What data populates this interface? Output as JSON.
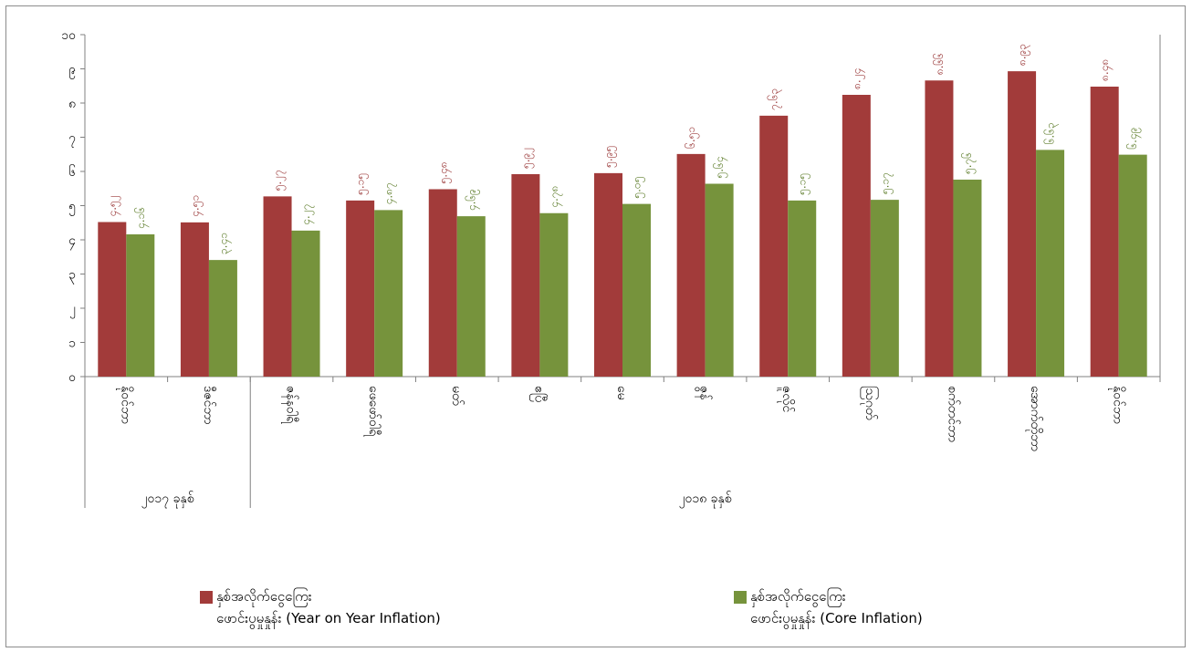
{
  "chart_data": {
    "type": "bar",
    "ylim": [
      0,
      10
    ],
    "yticks": [
      "၀",
      "၁",
      "၂",
      "၃",
      "၄",
      "၅",
      "၆",
      "၇",
      "၈",
      "၉",
      "၁၀"
    ],
    "categories": [
      "နိုဝင်ဘာ",
      "ဒီဇင်ဘာ",
      "ဇန်နဝါရီ",
      "ဖေဖော်ဝါရီ",
      "မတ်",
      "ဧပြီ",
      "မေ",
      "ဇွန်",
      "ဇူလိုင်",
      "ဩဂုတ်",
      "စက်တင်ဘာ",
      "အောက်တိုဘာ",
      "နိုဝင်ဘာ"
    ],
    "groups": [
      {
        "label": "၂၀၁၇ ခုနှစ်",
        "count": 2
      },
      {
        "label": "၂၀၁၈ ခုနှစ်",
        "count": 11
      }
    ],
    "series": [
      {
        "name": "နှစ်အလိုက်ငွေကြေးဖောင်းပွမှုနှုန်း (Year on Year Inflation)",
        "color": "#a23b3a",
        "values": [
          4.52,
          4.51,
          5.27,
          5.15,
          5.48,
          5.92,
          5.95,
          6.51,
          7.63,
          8.24,
          8.66,
          8.93,
          8.48
        ],
        "labels": [
          "၄.၅၂",
          "၄.၅၁",
          "၅.၂၇",
          "၅.၁၅",
          "၅.၄၈",
          "၅.၉၂",
          "၅.၉၅",
          "၆.၅၁",
          "၇.၆၃",
          "၈.၂၄",
          "၈.၆၆",
          "၈.၉၃",
          "၈.၄၈"
        ]
      },
      {
        "name": "နှစ်အလိုက်ငွေကြေးဖောင်းပွမှုနှုန်း (Core Inflation)",
        "color": "#76933c",
        "values": [
          4.16,
          3.41,
          4.27,
          4.87,
          4.69,
          4.78,
          5.05,
          5.64,
          5.15,
          5.17,
          5.76,
          6.63,
          6.49
        ],
        "labels": [
          "၄.၁၆",
          "၃.၄၁",
          "၄.၂၇",
          "၄.၈၇",
          "၄.၆၉",
          "၄.၇၈",
          "၅.၀၅",
          "၅.၆၄",
          "၅.၁၅",
          "၅.၁၇",
          "၅.၇၆",
          "၆.၆၃",
          "၆.၄၉"
        ]
      }
    ]
  },
  "legend": {
    "yoy": {
      "line1": "နှစ်အလိုက်ငွေကြေး",
      "line2": "ဖောင်းပွမှုနှုန်း  (Year on Year Inflation)"
    },
    "core": {
      "line1": "နှစ်အလိုက်ငွေကြေး",
      "line2": "ဖောင်းပွမှုနှုန်း (Core Inflation)"
    }
  }
}
